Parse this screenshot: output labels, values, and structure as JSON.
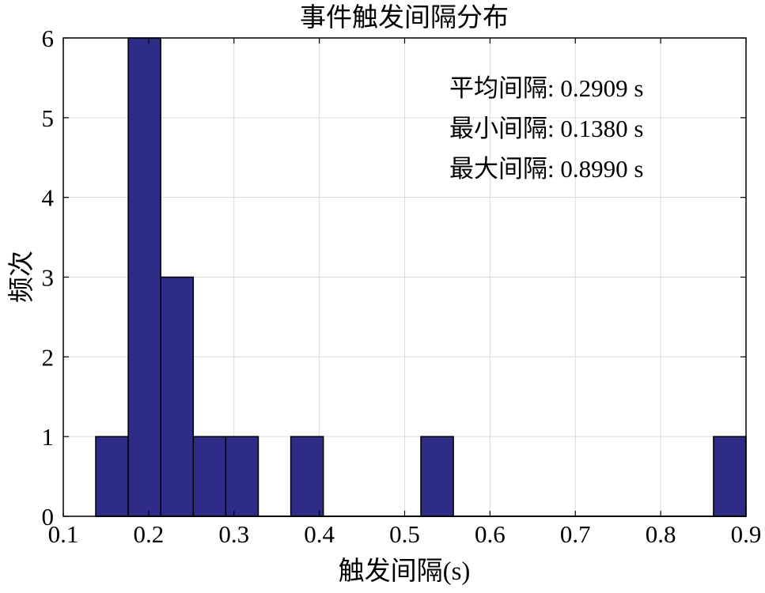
{
  "chart_data": {
    "type": "bar",
    "title": "事件触发间隔分布",
    "xlabel": "触发间隔(s)",
    "ylabel": "频次",
    "xlim": [
      0.1,
      0.9
    ],
    "ylim": [
      0,
      6
    ],
    "xticks": [
      "0.1",
      "0.2",
      "0.3",
      "0.4",
      "0.5",
      "0.6",
      "0.7",
      "0.8",
      "0.9"
    ],
    "yticks": [
      "0",
      "1",
      "2",
      "3",
      "4",
      "5",
      "6"
    ],
    "grid": true,
    "bin_width": 0.0381,
    "bins": [
      {
        "start": 0.138,
        "end": 0.1761,
        "count": 1
      },
      {
        "start": 0.1761,
        "end": 0.2142,
        "count": 6
      },
      {
        "start": 0.2142,
        "end": 0.2523,
        "count": 3
      },
      {
        "start": 0.2523,
        "end": 0.2904,
        "count": 1
      },
      {
        "start": 0.2904,
        "end": 0.3285,
        "count": 1
      },
      {
        "start": 0.3285,
        "end": 0.3666,
        "count": 0
      },
      {
        "start": 0.3666,
        "end": 0.4047,
        "count": 1
      },
      {
        "start": 0.4047,
        "end": 0.4428,
        "count": 0
      },
      {
        "start": 0.4428,
        "end": 0.4809,
        "count": 0
      },
      {
        "start": 0.4809,
        "end": 0.519,
        "count": 0
      },
      {
        "start": 0.519,
        "end": 0.5571,
        "count": 1
      },
      {
        "start": 0.5571,
        "end": 0.5952,
        "count": 0
      },
      {
        "start": 0.5952,
        "end": 0.6333,
        "count": 0
      },
      {
        "start": 0.6333,
        "end": 0.6714,
        "count": 0
      },
      {
        "start": 0.6714,
        "end": 0.7095,
        "count": 0
      },
      {
        "start": 0.7095,
        "end": 0.7476,
        "count": 0
      },
      {
        "start": 0.7476,
        "end": 0.7857,
        "count": 0
      },
      {
        "start": 0.7857,
        "end": 0.8238,
        "count": 0
      },
      {
        "start": 0.8238,
        "end": 0.8619,
        "count": 0
      },
      {
        "start": 0.8619,
        "end": 0.9,
        "count": 1
      }
    ],
    "annotations": [
      "平均间隔: 0.2909 s",
      "最小间隔: 0.1380 s",
      "最大间隔: 0.8990 s"
    ],
    "colors": {
      "bar": "#2e2c86",
      "grid": "#dcdcdc",
      "axis": "#000000"
    }
  }
}
